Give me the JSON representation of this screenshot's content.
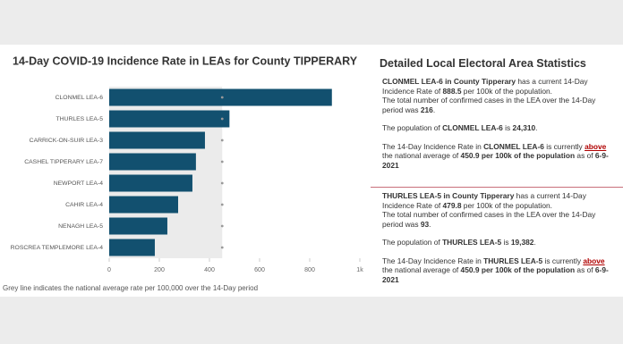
{
  "chart_data": {
    "type": "hbar",
    "title": "14-Day COVID-19 Incidence Rate in LEAs for County TIPPERARY",
    "categories": [
      "CLONMEL LEA-6",
      "THURLES LEA-5",
      "CARRICK-ON-SUIR LEA-3",
      "CASHEL TIPPERARY LEA-7",
      "NEWPORT LEA-4",
      "CAHIR LEA-4",
      "NENAGH LEA-5",
      "ROSCREA TEMPLEMORE LEA-4"
    ],
    "values": [
      888.5,
      479.8,
      382,
      346,
      332,
      275,
      232,
      182
    ],
    "color": "#12506f",
    "reference_line": 450.9,
    "xlim": [
      0,
      1000
    ],
    "xticks": [
      0,
      200,
      400,
      600,
      800,
      {
        "value": 1000,
        "label": "1k"
      }
    ],
    "footnote": "Grey line indicates the national average rate per 100,000 over the 14-Day period"
  },
  "details": {
    "title": "Detailed Local Electoral Area Statistics",
    "panels": [
      {
        "blocks": [
          [
            [
              {
                "text": "CLONMEL LEA-6 in County Tipperary",
                "style": "bold"
              },
              {
                "text": " has a current 14-Day Incidence Rate of "
              },
              {
                "text": "888.5",
                "style": "bold"
              },
              {
                "text": " per 100k of the population."
              }
            ],
            [
              {
                "text": "The total number of confirmed cases in the LEA over the 14-Day period was "
              },
              {
                "text": "216",
                "style": "bold"
              },
              {
                "text": "."
              }
            ]
          ],
          [
            [
              {
                "text": "The population of "
              },
              {
                "text": "CLONMEL LEA-6",
                "style": "bold"
              },
              {
                "text": " is "
              },
              {
                "text": "24,310",
                "style": "bold"
              },
              {
                "text": "."
              }
            ]
          ],
          [
            [
              {
                "text": "The 14-Day Incidence Rate in "
              },
              {
                "text": "CLONMEL LEA-6",
                "style": "bold"
              },
              {
                "text": " is currently "
              },
              {
                "text": "above",
                "style": "underline"
              },
              {
                "text": " the national average of "
              },
              {
                "text": "450.9 per 100k of the population",
                "style": "bold"
              },
              {
                "text": " as of "
              },
              {
                "text": "6-9-2021",
                "style": "bold"
              }
            ]
          ]
        ]
      },
      {
        "blocks": [
          [
            [
              {
                "text": "THURLES LEA-5 in County Tipperary",
                "style": "bold"
              },
              {
                "text": " has a current 14-Day Incidence Rate of "
              },
              {
                "text": "479.8",
                "style": "bold"
              },
              {
                "text": " per 100k of the population."
              }
            ],
            [
              {
                "text": "The total number of confirmed cases in the LEA over the 14-Day period was "
              },
              {
                "text": "93",
                "style": "bold"
              },
              {
                "text": "."
              }
            ]
          ],
          [
            [
              {
                "text": "The population of "
              },
              {
                "text": "THURLES LEA-5",
                "style": "bold"
              },
              {
                "text": " is "
              },
              {
                "text": "19,382",
                "style": "bold"
              },
              {
                "text": "."
              }
            ]
          ],
          [
            [
              {
                "text": "The 14-Day Incidence Rate in "
              },
              {
                "text": "THURLES LEA-5",
                "style": "bold"
              },
              {
                "text": " is currently "
              },
              {
                "text": "above",
                "style": "underline"
              },
              {
                "text": " the national average of "
              },
              {
                "text": "450.9 per 100k of the population",
                "style": "bold"
              },
              {
                "text": " as of "
              },
              {
                "text": "6-9-2021",
                "style": "bold"
              }
            ]
          ]
        ]
      }
    ]
  }
}
